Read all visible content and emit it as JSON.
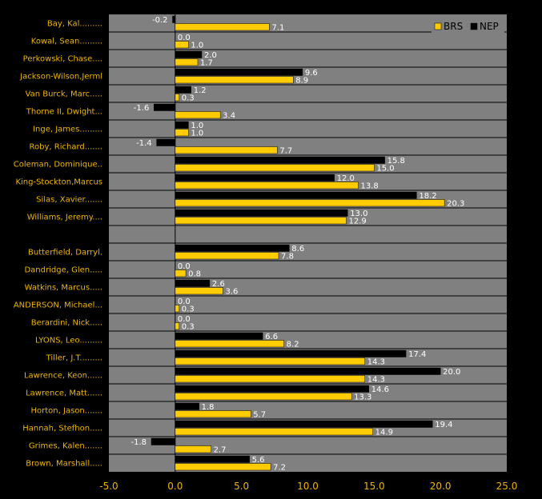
{
  "colors": {
    "background": "#000000",
    "plot_area": "#808080",
    "series_brs": "#ffcc00",
    "series_nep": "#000000",
    "label_text": "#f0b400",
    "value_text": "#ffffff"
  },
  "chart_data": {
    "type": "bar",
    "orientation": "horizontal",
    "categories": [
      "Bay, Kal.........",
      "Kowal, Sean.........",
      "Perkowski, Chase....",
      "Jackson-Wilson,Jerml",
      "Van Burck, Marc.....",
      "Thorne II, Dwight...",
      "Inge, James.........",
      "Roby, Richard.......",
      "Coleman, Dominique..",
      "King-Stockton,Marcus",
      "Silas, Xavier.......",
      "Williams, Jeremy....",
      "",
      "Butterfield, Darryl.",
      "Dandridge, Glen.....",
      "Watkins, Marcus.....",
      "ANDERSON, Michael...",
      "Berardini, Nick.....",
      "LYONS, Leo.........",
      "Tiller, J.T.........",
      "Lawrence, Keon......",
      "Lawrence, Matt......",
      "Horton, Jason.......",
      "Hannah, Stefhon.....",
      "Grimes, Kalen.......",
      "Brown, Marshall....."
    ],
    "series": [
      {
        "name": "NEP",
        "color": "#000000",
        "values": [
          -0.2,
          0.0,
          2.0,
          9.6,
          1.2,
          -1.6,
          1.0,
          -1.4,
          15.8,
          12.0,
          18.2,
          13.0,
          null,
          8.6,
          0.0,
          2.6,
          0.0,
          0.0,
          6.6,
          17.4,
          20.0,
          14.6,
          1.8,
          19.4,
          -1.8,
          5.6
        ],
        "labels": [
          "-0.2",
          "0.0",
          "2.0",
          "9.6",
          "1.2",
          "-1.6",
          "1.0",
          "-1.4",
          "15.8",
          "12.0",
          "18.2",
          "13.0",
          "",
          "8.6",
          "0.0",
          "2.6",
          "0.0",
          "0.0",
          "6.6",
          "17.4",
          "20.0",
          "14.6",
          "1.8",
          "19.4",
          "-1.8",
          "5.6"
        ]
      },
      {
        "name": "BRS",
        "color": "#ffcc00",
        "values": [
          7.1,
          1.0,
          1.7,
          8.9,
          0.3,
          3.4,
          1.0,
          7.7,
          15.0,
          13.8,
          20.3,
          12.9,
          null,
          7.8,
          0.8,
          3.6,
          0.3,
          0.3,
          8.2,
          14.3,
          14.3,
          13.3,
          5.7,
          14.9,
          2.7,
          7.2
        ],
        "labels": [
          "7.1",
          "1.0",
          "1.7",
          "8.9",
          "0.3",
          "3.4",
          "1.0",
          "7.7",
          "15.0",
          "13.8",
          "20.3",
          "12.9",
          "",
          "7.8",
          "0.8",
          "3.6",
          "0.3",
          "0.3",
          "8.2",
          "14.3",
          "14.3",
          "13.3",
          "5.7",
          "14.9",
          "2.7",
          "7.2"
        ]
      }
    ],
    "xlim": [
      -5.0,
      25.0
    ],
    "x_ticks": [
      -5.0,
      0.0,
      5.0,
      10.0,
      15.0,
      20.0,
      25.0
    ],
    "x_tick_labels": [
      "-5.0",
      "0.0",
      "5.0",
      "10.0",
      "15.0",
      "20.0",
      "25.0"
    ],
    "legend": {
      "position": "top-right",
      "items": [
        "BRS",
        "NEP"
      ]
    },
    "grid": "horizontal separators between categories"
  }
}
